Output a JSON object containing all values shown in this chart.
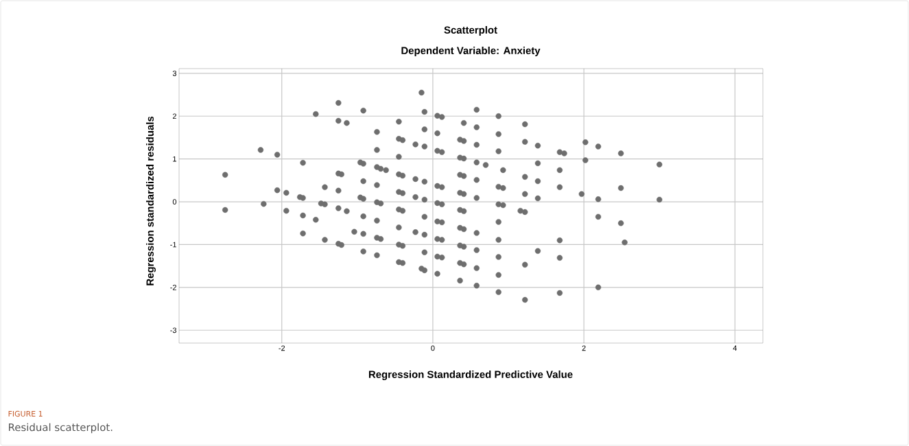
{
  "chart_data": {
    "type": "scatter",
    "title": "Scatterplot",
    "subtitle": "Dependent Variable: Anxiety",
    "xlabel": "Regression Standardized Predictive Value",
    "ylabel": "Regression standardized residuals",
    "annotations": [
      "FIGURE 1",
      "Residual scatterplot."
    ],
    "xlim": [
      -3.36,
      4.37
    ],
    "ylim": [
      -3.3,
      3.11
    ],
    "xticks": [
      -2,
      0,
      2,
      4
    ],
    "yticks": [
      -3,
      -2,
      -1,
      0,
      1,
      2,
      3
    ],
    "grid": true,
    "series": [
      {
        "color": "#6e6e6e",
        "x": [
          -2.75,
          -2.75,
          -2.28,
          -2.24,
          -2.06,
          -2.06,
          -1.94,
          -1.94,
          -1.72,
          -1.76,
          -1.72,
          -1.72,
          -1.72,
          -1.55,
          -1.55,
          -1.43,
          -1.48,
          -1.43,
          -1.43,
          -1.25,
          -1.25,
          -1.25,
          -1.21,
          -1.25,
          -1.25,
          -1.25,
          -1.21,
          -1.14,
          -1.14,
          -1.04,
          -0.92,
          -0.96,
          -0.92,
          -0.92,
          -0.96,
          -0.92,
          -0.92,
          -0.92,
          -0.92,
          -0.74,
          -0.74,
          -0.74,
          -0.69,
          -0.62,
          -0.74,
          -0.74,
          -0.69,
          -0.74,
          -0.74,
          -0.69,
          -0.74,
          -0.45,
          -0.45,
          -0.4,
          -0.45,
          -0.45,
          -0.4,
          -0.45,
          -0.4,
          -0.45,
          -0.4,
          -0.45,
          -0.45,
          -0.4,
          -0.45,
          -0.4,
          -0.23,
          -0.23,
          -0.23,
          -0.23,
          -0.15,
          -0.11,
          -0.11,
          -0.11,
          -0.11,
          -0.11,
          -0.11,
          -0.11,
          -0.11,
          -0.15,
          -0.11,
          0.06,
          0.12,
          0.06,
          0.06,
          0.12,
          0.06,
          0.12,
          0.06,
          0.12,
          0.06,
          0.12,
          0.06,
          0.12,
          0.06,
          0.12,
          0.06,
          0.41,
          0.36,
          0.41,
          0.36,
          0.41,
          0.36,
          0.41,
          0.36,
          0.41,
          0.36,
          0.41,
          0.36,
          0.41,
          0.36,
          0.41,
          0.36,
          0.41,
          0.36,
          0.58,
          0.58,
          0.58,
          0.58,
          0.7,
          0.58,
          0.58,
          0.58,
          0.58,
          0.58,
          0.58,
          0.87,
          0.87,
          0.87,
          0.93,
          0.87,
          0.93,
          0.87,
          0.93,
          0.87,
          0.87,
          0.87,
          0.87,
          0.87,
          1.22,
          1.22,
          1.22,
          1.22,
          1.16,
          1.22,
          1.22,
          1.22,
          1.39,
          1.39,
          1.39,
          1.39,
          1.39,
          1.68,
          1.74,
          1.68,
          1.68,
          1.68,
          1.68,
          1.68,
          2.02,
          2.02,
          1.97,
          2.19,
          2.19,
          2.19,
          2.19,
          2.49,
          2.49,
          2.49,
          2.54,
          3.0,
          3.0
        ],
        "values": [
          0.63,
          -0.19,
          1.21,
          -0.05,
          1.1,
          0.27,
          0.21,
          -0.21,
          0.91,
          0.11,
          0.09,
          -0.32,
          -0.74,
          2.05,
          -0.42,
          0.34,
          -0.04,
          -0.06,
          -0.89,
          2.31,
          1.89,
          0.66,
          0.64,
          0.26,
          -0.15,
          -0.98,
          -1.01,
          1.84,
          -0.22,
          -0.7,
          2.13,
          0.92,
          0.89,
          0.48,
          0.1,
          0.07,
          -0.34,
          -0.75,
          -1.16,
          1.63,
          1.21,
          0.81,
          0.77,
          0.74,
          0.39,
          -0.01,
          -0.04,
          -0.44,
          -0.84,
          -0.87,
          -1.25,
          1.87,
          1.47,
          1.44,
          1.05,
          0.64,
          0.61,
          0.23,
          0.2,
          -0.18,
          -0.21,
          -0.6,
          -1.0,
          -1.03,
          -1.41,
          -1.43,
          1.34,
          0.53,
          0.11,
          -0.71,
          2.55,
          2.1,
          1.69,
          1.29,
          0.47,
          0.05,
          -0.35,
          -0.77,
          -1.18,
          -1.56,
          -1.6,
          2.01,
          1.98,
          1.6,
          1.19,
          1.16,
          0.37,
          0.34,
          -0.03,
          -0.06,
          -0.46,
          -0.48,
          -0.87,
          -0.89,
          -1.28,
          -1.3,
          -1.68,
          1.84,
          1.45,
          1.42,
          1.03,
          1.01,
          0.63,
          0.6,
          0.21,
          0.18,
          -0.19,
          -0.22,
          -0.61,
          -0.64,
          -1.02,
          -1.05,
          -1.43,
          -1.46,
          -1.84,
          2.15,
          1.74,
          1.33,
          0.92,
          0.86,
          0.51,
          0.09,
          -0.73,
          -1.13,
          -1.55,
          -1.96,
          2.0,
          1.58,
          1.18,
          0.74,
          0.35,
          0.32,
          -0.06,
          -0.08,
          -0.47,
          -0.89,
          -1.29,
          -1.71,
          -2.11,
          1.81,
          1.4,
          0.58,
          0.18,
          -0.21,
          -0.24,
          -1.47,
          -2.29,
          1.31,
          0.9,
          0.48,
          0.08,
          -1.15,
          1.16,
          1.13,
          0.74,
          0.34,
          -0.9,
          -1.31,
          -2.13,
          1.39,
          0.97,
          0.18,
          1.29,
          0.06,
          -0.35,
          -2.0,
          1.13,
          0.32,
          -0.5,
          -0.95,
          0.87,
          0.05
        ]
      }
    ]
  }
}
